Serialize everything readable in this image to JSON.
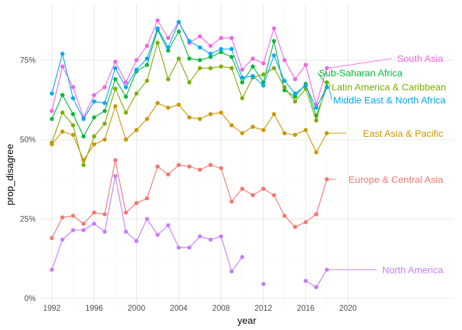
{
  "chart_data": {
    "type": "line",
    "title": "",
    "xlabel": "year",
    "ylabel": "prop_disagree",
    "xlim": [
      1991,
      2030
    ],
    "ylim": [
      0,
      0.86
    ],
    "x_ticks": [
      1992,
      1996,
      2000,
      2004,
      2008,
      2012,
      2016,
      2020
    ],
    "y_ticks": [
      0,
      0.25,
      0.5,
      0.75
    ],
    "y_tick_labels": [
      "0%",
      "25%",
      "50%",
      "75%"
    ],
    "grid": true,
    "legend": "direct labels at right",
    "series": [
      {
        "name": "South Asia",
        "color": "#F564E3",
        "points": [
          [
            1992,
            0.59
          ],
          [
            1993,
            0.73
          ],
          [
            1994,
            0.665
          ],
          [
            1995,
            0.57
          ],
          [
            1996,
            0.64
          ],
          [
            1997,
            0.665
          ],
          [
            1998,
            0.745
          ],
          [
            1999,
            0.68
          ],
          [
            2000,
            0.75
          ],
          [
            2001,
            0.795
          ],
          [
            2002,
            0.875
          ],
          [
            2003,
            0.82
          ],
          [
            2004,
            0.87
          ],
          [
            2005,
            0.805
          ],
          [
            2006,
            0.825
          ],
          [
            2007,
            0.795
          ],
          [
            2008,
            0.82
          ],
          [
            2009,
            0.82
          ],
          [
            2010,
            0.72
          ],
          [
            2011,
            0.755
          ],
          [
            2012,
            0.74
          ],
          [
            2013,
            0.85
          ],
          [
            2014,
            0.75
          ],
          [
            2015,
            0.69
          ],
          [
            2016,
            0.735
          ],
          [
            2017,
            0.61
          ],
          [
            2018,
            0.725
          ]
        ],
        "label_year": 2029
      },
      {
        "name": "Sub-Saharan Africa",
        "color": "#00BA38",
        "points": [
          [
            1992,
            0.565
          ],
          [
            1993,
            0.64
          ],
          [
            1994,
            0.58
          ],
          [
            1995,
            0.51
          ],
          [
            1996,
            0.57
          ],
          [
            1997,
            0.59
          ],
          [
            1998,
            0.69
          ],
          [
            1999,
            0.635
          ],
          [
            2000,
            0.715
          ],
          [
            2001,
            0.735
          ],
          [
            2002,
            0.845
          ],
          [
            2003,
            0.78
          ],
          [
            2004,
            0.84
          ],
          [
            2005,
            0.755
          ],
          [
            2006,
            0.75
          ],
          [
            2007,
            0.76
          ],
          [
            2008,
            0.775
          ],
          [
            2009,
            0.76
          ],
          [
            2010,
            0.68
          ],
          [
            2011,
            0.73
          ],
          [
            2012,
            0.68
          ],
          [
            2013,
            0.81
          ],
          [
            2014,
            0.655
          ],
          [
            2015,
            0.635
          ],
          [
            2016,
            0.675
          ],
          [
            2017,
            0.575
          ],
          [
            2018,
            0.665
          ]
        ],
        "label_year": 2020
      },
      {
        "name": "Latin America & Caribbean",
        "color": "#7CAE00",
        "points": [
          [
            1992,
            0.49
          ],
          [
            1993,
            0.585
          ],
          [
            1994,
            0.545
          ],
          [
            1995,
            0.42
          ],
          [
            1996,
            0.51
          ],
          [
            1997,
            0.55
          ],
          [
            1998,
            0.66
          ],
          [
            1999,
            0.585
          ],
          [
            2000,
            0.645
          ],
          [
            2001,
            0.685
          ],
          [
            2002,
            0.805
          ],
          [
            2003,
            0.69
          ],
          [
            2004,
            0.755
          ],
          [
            2005,
            0.68
          ],
          [
            2006,
            0.725
          ],
          [
            2007,
            0.725
          ],
          [
            2008,
            0.73
          ],
          [
            2009,
            0.725
          ],
          [
            2010,
            0.63
          ],
          [
            2011,
            0.695
          ],
          [
            2012,
            0.705
          ],
          [
            2013,
            0.725
          ],
          [
            2014,
            0.665
          ],
          [
            2015,
            0.62
          ],
          [
            2016,
            0.66
          ],
          [
            2017,
            0.56
          ],
          [
            2018,
            0.68
          ]
        ],
        "label_year": 2027.5
      },
      {
        "name": "Middle East & North Africa",
        "color": "#00A9FF",
        "points": [
          [
            1992,
            0.645
          ],
          [
            1993,
            0.77
          ],
          [
            1994,
            0.63
          ],
          [
            1995,
            0.565
          ],
          [
            1996,
            0.62
          ],
          [
            1997,
            0.615
          ],
          [
            1998,
            0.725
          ],
          [
            1999,
            0.665
          ],
          [
            2000,
            0.72
          ],
          [
            2001,
            0.755
          ],
          [
            2002,
            0.85
          ],
          [
            2003,
            0.79
          ],
          [
            2004,
            0.87
          ],
          [
            2005,
            0.81
          ],
          [
            2006,
            0.79
          ],
          [
            2007,
            0.77
          ],
          [
            2008,
            0.785
          ],
          [
            2009,
            0.785
          ],
          [
            2010,
            0.695
          ],
          [
            2011,
            0.7
          ],
          [
            2012,
            0.67
          ],
          [
            2013,
            0.765
          ],
          [
            2014,
            0.685
          ],
          [
            2015,
            0.645
          ],
          [
            2016,
            0.67
          ],
          [
            2017,
            0.6
          ],
          [
            2018,
            0.665
          ]
        ],
        "label_year": 2029
      },
      {
        "name": "East Asia & Pacific",
        "color": "#CD9600",
        "points": [
          [
            1992,
            0.485
          ],
          [
            1993,
            0.525
          ],
          [
            1994,
            0.515
          ],
          [
            1995,
            0.435
          ],
          [
            1996,
            0.485
          ],
          [
            1997,
            0.5
          ],
          [
            1998,
            0.605
          ],
          [
            1999,
            0.5
          ],
          [
            2000,
            0.53
          ],
          [
            2001,
            0.565
          ],
          [
            2002,
            0.615
          ],
          [
            2003,
            0.6
          ],
          [
            2004,
            0.61
          ],
          [
            2005,
            0.57
          ],
          [
            2006,
            0.565
          ],
          [
            2007,
            0.58
          ],
          [
            2008,
            0.585
          ],
          [
            2009,
            0.545
          ],
          [
            2010,
            0.52
          ],
          [
            2011,
            0.54
          ],
          [
            2012,
            0.53
          ],
          [
            2013,
            0.58
          ],
          [
            2014,
            0.52
          ],
          [
            2015,
            0.515
          ],
          [
            2016,
            0.53
          ],
          [
            2017,
            0.46
          ],
          [
            2018,
            0.52
          ]
        ],
        "label_year": 2029
      },
      {
        "name": "Europe & Central Asia",
        "color": "#F8766D",
        "points": [
          [
            1992,
            0.19
          ],
          [
            1993,
            0.255
          ],
          [
            1994,
            0.26
          ],
          [
            1995,
            0.235
          ],
          [
            1996,
            0.27
          ],
          [
            1997,
            0.265
          ],
          [
            1998,
            0.435
          ],
          [
            1999,
            0.27
          ],
          [
            2000,
            0.3
          ],
          [
            2001,
            0.315
          ],
          [
            2002,
            0.415
          ],
          [
            2003,
            0.39
          ],
          [
            2004,
            0.42
          ],
          [
            2005,
            0.415
          ],
          [
            2006,
            0.405
          ],
          [
            2007,
            0.42
          ],
          [
            2008,
            0.41
          ],
          [
            2009,
            0.305
          ],
          [
            2010,
            0.345
          ],
          [
            2011,
            0.325
          ],
          [
            2012,
            0.345
          ],
          [
            2013,
            0.325
          ],
          [
            2014,
            0.26
          ],
          [
            2015,
            0.225
          ],
          [
            2016,
            0.24
          ],
          [
            2017,
            0.265
          ],
          [
            2018,
            0.375
          ]
        ],
        "label_year": 2029
      },
      {
        "name": "North America",
        "color": "#C77CFF",
        "points": [
          [
            1992,
            0.09
          ],
          [
            1993,
            0.185
          ],
          [
            1994,
            0.215
          ],
          [
            1995,
            0.215
          ],
          [
            1996,
            0.235
          ],
          [
            1997,
            0.21
          ],
          [
            1998,
            0.385
          ],
          [
            1999,
            0.21
          ],
          [
            2000,
            0.18
          ],
          [
            2001,
            0.25
          ],
          [
            2002,
            0.2
          ],
          [
            2003,
            0.23
          ],
          [
            2004,
            0.16
          ],
          [
            2005,
            0.16
          ],
          [
            2006,
            0.195
          ],
          [
            2007,
            0.185
          ],
          [
            2008,
            0.195
          ],
          [
            2009,
            0.085
          ],
          [
            2010,
            0.13
          ],
          [
            2011,
            null
          ],
          [
            2012,
            0.045
          ],
          [
            2013,
            null
          ],
          [
            2014,
            null
          ],
          [
            2015,
            null
          ],
          [
            2016,
            0.055
          ],
          [
            2017,
            0.035
          ],
          [
            2018,
            0.09
          ]
        ],
        "label_year": 2029
      }
    ]
  }
}
